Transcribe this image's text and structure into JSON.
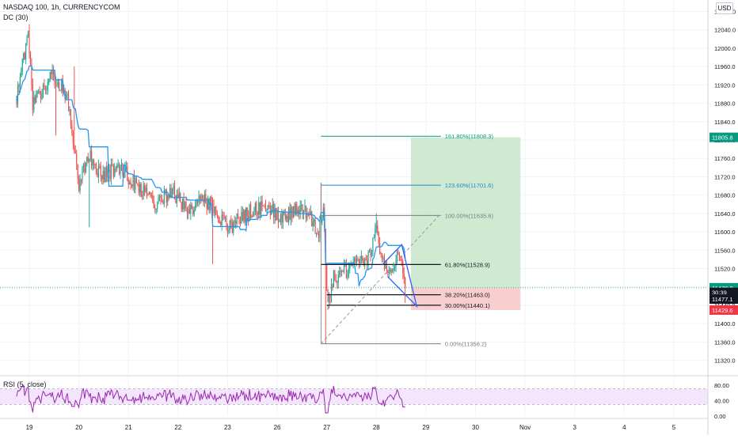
{
  "header": {
    "symbol_line": "NASDAQ 100, 1h, CURRENCYCOM",
    "indicator": "DC (30)",
    "currency_button": "USD",
    "rsi_label": "RSI (5, close)"
  },
  "colors": {
    "bull": "#26a69a",
    "bear": "#ef5350",
    "donchian": "#2196f3",
    "fib_extension": "#089981",
    "fib_line_blue": "#2962ff",
    "target_zone": "#c8e6c9",
    "stop_zone": "#f7c7c7",
    "rsi_line": "#9c27b0",
    "rsi_band": "#f3e5fc",
    "price_tag_green": "#089981",
    "price_tag_red": "#f23645",
    "price_tag_dark": "#131722"
  },
  "chart_data": {
    "type": "candlestick",
    "price_axis": {
      "ylim": [
        11290,
        12105
      ],
      "ticks": [
        12080.0,
        12040.0,
        12000.0,
        11960.0,
        11920.0,
        11880.0,
        11840.0,
        11800.0,
        11760.0,
        11720.0,
        11680.0,
        11640.0,
        11600.0,
        11560.0,
        11520.0,
        11480.0,
        11440.0,
        11400.0,
        11360.0,
        11320.0
      ],
      "tick_labels": [
        "12080.0",
        "12040.0",
        "12000.0",
        "11960.0",
        "11920.0",
        "11880.0",
        "11840.0",
        "11800.0",
        "11760.0",
        "11720.0",
        "11680.0",
        "11640.0",
        "11600.0",
        "11560.0",
        "11520.0",
        "11480.0",
        "11440.0",
        "11400.0",
        "11360.0",
        "11320.0"
      ]
    },
    "x_axis": {
      "labels": [
        "19",
        "20",
        "21",
        "22",
        "23",
        "26",
        "27",
        "28",
        "29",
        "30",
        "Nov",
        "3",
        "4",
        "5"
      ],
      "label_index": [
        11,
        54,
        97,
        140,
        183,
        226,
        269,
        312,
        355,
        398,
        441,
        484,
        527,
        570
      ],
      "bars_per_day": 43,
      "last_bar_index": 337
    },
    "price_series_summary": {
      "approx_high": 12035,
      "approx_low": 11356.2,
      "last_close": 11477.1
    },
    "price_tags": [
      {
        "label": "11805.8",
        "value": 11805.8,
        "kind": "target"
      },
      {
        "label": "11478.2",
        "value": 11478.2,
        "kind": "entry"
      },
      {
        "label": "30:39",
        "value": 11468.0,
        "kind": "countdown"
      },
      {
        "label": "11477.1",
        "value": 11453.5,
        "kind": "last"
      },
      {
        "label": "11429.6",
        "value": 11429.6,
        "kind": "stop"
      }
    ],
    "fibonacci": {
      "anchor_low": {
        "bar": 264,
        "value": 11356.2
      },
      "anchor_high": {
        "bar": 264,
        "value": 11707
      },
      "levels": [
        {
          "label": "161.80%(11808.3)",
          "value": 11808.3,
          "kind": "extension",
          "x_start": 264
        },
        {
          "label": "123.60%(11701.6)",
          "value": 11701.6,
          "kind": "extension",
          "x_start": 264
        },
        {
          "label": "100.00%(11635.6)",
          "value": 11635.6,
          "kind": "base",
          "x_start": 264
        },
        {
          "label": "61.80%(11528.9)",
          "value": 11528.9,
          "kind": "key",
          "x_start": 264
        },
        {
          "label": "38.20%(11463.0)",
          "value": 11463.0,
          "kind": "key",
          "x_start": 269
        },
        {
          "label": "30.00%(11440.1)",
          "value": 11440.1,
          "kind": "key",
          "x_start": 269
        },
        {
          "label": "0.00%(11356.2)",
          "value": 11356.2,
          "kind": "base",
          "x_start": 264
        }
      ],
      "x_end_bar": 368
    },
    "position_tool": {
      "start_bar": 342,
      "end_bar": 437,
      "entry": 11478.2,
      "target": 11805.8,
      "stop": 11429.6
    },
    "wedge_pattern": {
      "points": [
        {
          "bar": 317,
          "value": 11528
        },
        {
          "bar": 334,
          "value": 11572
        },
        {
          "bar": 347,
          "value": 11438
        },
        {
          "bar": 322,
          "value": 11502
        }
      ]
    },
    "rsi": {
      "ylim": [
        0,
        100
      ],
      "ticks": [
        80.0,
        40.0,
        0.0
      ],
      "tick_labels": [
        "80.00",
        "40.00",
        "0.00"
      ],
      "band": [
        30,
        70
      ]
    }
  }
}
